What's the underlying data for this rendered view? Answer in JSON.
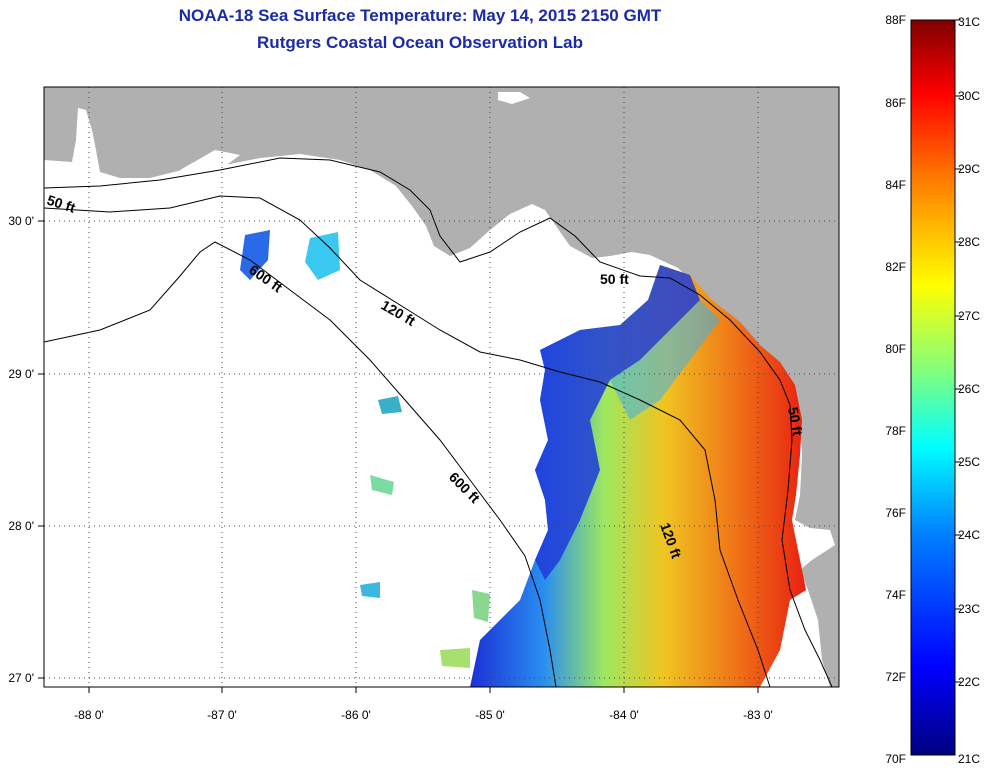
{
  "title_line1": "NOAA-18 Sea Surface Temperature:  May 14, 2015 2150 GMT",
  "title_line2": "Rutgers Coastal Ocean Observation Lab",
  "map": {
    "lon_ticks": [
      {
        "value": -88,
        "label": "-88 0'"
      },
      {
        "value": -87,
        "label": "-87 0'"
      },
      {
        "value": -86,
        "label": "-86 0'"
      },
      {
        "value": -85,
        "label": "-85 0'"
      },
      {
        "value": -84,
        "label": "-84 0'"
      },
      {
        "value": -83,
        "label": "-83 0'"
      }
    ],
    "lat_ticks": [
      {
        "value": 30,
        "label": "30 0'"
      },
      {
        "value": 29,
        "label": "29 0'"
      },
      {
        "value": 28,
        "label": "28 0'"
      },
      {
        "value": 27,
        "label": "27 0'"
      }
    ],
    "contour_labels": [
      "50 ft",
      "50 ft",
      "50 ft",
      "120 ft",
      "120 ft",
      "600 ft",
      "600 ft"
    ]
  },
  "colorbar": {
    "fahrenheit": [
      {
        "value": 88,
        "label": "88F"
      },
      {
        "value": 86,
        "label": "86F"
      },
      {
        "value": 84,
        "label": "84F"
      },
      {
        "value": 82,
        "label": "82F"
      },
      {
        "value": 80,
        "label": "80F"
      },
      {
        "value": 78,
        "label": "78F"
      },
      {
        "value": 76,
        "label": "76F"
      },
      {
        "value": 74,
        "label": "74F"
      },
      {
        "value": 72,
        "label": "72F"
      },
      {
        "value": 70,
        "label": "70F"
      }
    ],
    "celsius": [
      {
        "value": 31,
        "label": "31C"
      },
      {
        "value": 30,
        "label": "30C"
      },
      {
        "value": 29,
        "label": "29C"
      },
      {
        "value": 28,
        "label": "28C"
      },
      {
        "value": 27,
        "label": "27C"
      },
      {
        "value": 26,
        "label": "26C"
      },
      {
        "value": 25,
        "label": "25C"
      },
      {
        "value": 24,
        "label": "24C"
      },
      {
        "value": 23,
        "label": "23C"
      },
      {
        "value": 22,
        "label": "22C"
      },
      {
        "value": 21,
        "label": "21C"
      }
    ],
    "colors": [
      "#00007f",
      "#0000ff",
      "#007fff",
      "#00ffff",
      "#7fff7f",
      "#ffff00",
      "#ff7f00",
      "#ff0000",
      "#7f0000"
    ]
  }
}
